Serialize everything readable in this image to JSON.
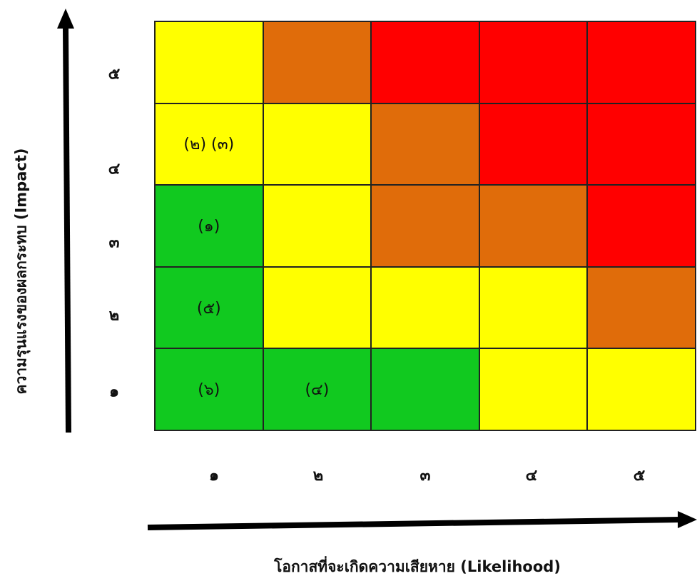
{
  "y_axis": {
    "title": "ความรุนแรงของผลกระทบ (Impact)"
  },
  "x_axis": {
    "title": "โอกาสที่จะเกิดความเสียหาย (Likelihood)"
  },
  "y_ticks": [
    "๕",
    "๔",
    "๓",
    "๒",
    "๑"
  ],
  "x_ticks": [
    "๑",
    "๒",
    "๓",
    "๔",
    "๕"
  ],
  "colors": {
    "green": "#11c91f",
    "yellow": "#ffff00",
    "orange": "#e06c0a",
    "red": "#ff0000"
  },
  "matrix": {
    "rows": [
      {
        "impact": "๕",
        "cells": [
          {
            "color": "yellow",
            "label": ""
          },
          {
            "color": "orange",
            "label": ""
          },
          {
            "color": "red",
            "label": ""
          },
          {
            "color": "red",
            "label": ""
          },
          {
            "color": "red",
            "label": ""
          }
        ]
      },
      {
        "impact": "๔",
        "cells": [
          {
            "color": "yellow",
            "label": "(๒) (๓)"
          },
          {
            "color": "yellow",
            "label": ""
          },
          {
            "color": "orange",
            "label": ""
          },
          {
            "color": "red",
            "label": ""
          },
          {
            "color": "red",
            "label": ""
          }
        ]
      },
      {
        "impact": "๓",
        "cells": [
          {
            "color": "green",
            "label": "(๑)"
          },
          {
            "color": "yellow",
            "label": ""
          },
          {
            "color": "orange",
            "label": ""
          },
          {
            "color": "orange",
            "label": ""
          },
          {
            "color": "red",
            "label": ""
          }
        ]
      },
      {
        "impact": "๒",
        "cells": [
          {
            "color": "green",
            "label": "(๕)"
          },
          {
            "color": "yellow",
            "label": ""
          },
          {
            "color": "yellow",
            "label": ""
          },
          {
            "color": "yellow",
            "label": ""
          },
          {
            "color": "orange",
            "label": ""
          }
        ]
      },
      {
        "impact": "๑",
        "cells": [
          {
            "color": "green",
            "label": "(๖)"
          },
          {
            "color": "green",
            "label": "(๔)"
          },
          {
            "color": "green",
            "label": ""
          },
          {
            "color": "yellow",
            "label": ""
          },
          {
            "color": "yellow",
            "label": ""
          }
        ]
      }
    ]
  }
}
